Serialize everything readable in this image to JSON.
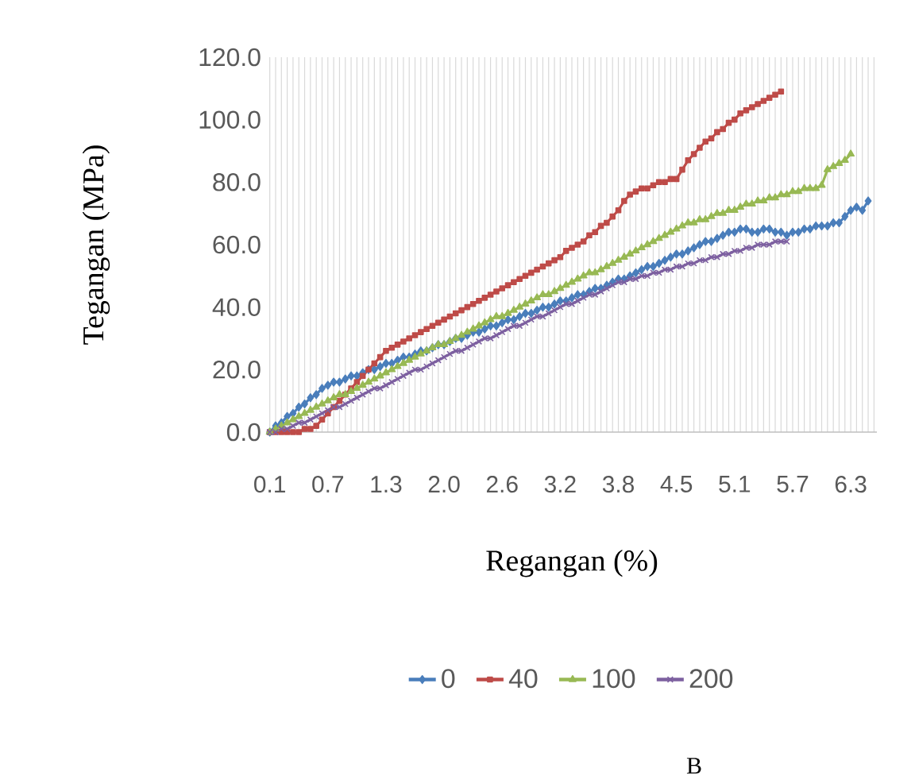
{
  "chart_data": {
    "type": "line",
    "xlabel": "Regangan (%)",
    "ylabel": "Tegangan (MPa)",
    "annotations": [
      "B"
    ],
    "categories": [
      "0.1",
      null,
      null,
      null,
      null,
      null,
      null,
      null,
      null,
      null,
      "0.7",
      null,
      null,
      null,
      null,
      null,
      null,
      null,
      null,
      null,
      "1.3",
      null,
      null,
      null,
      null,
      null,
      null,
      null,
      null,
      null,
      "2.0",
      null,
      null,
      null,
      null,
      null,
      null,
      null,
      null,
      null,
      "2.6",
      null,
      null,
      null,
      null,
      null,
      null,
      null,
      null,
      null,
      "3.2",
      null,
      null,
      null,
      null,
      null,
      null,
      null,
      null,
      null,
      "3.8",
      null,
      null,
      null,
      null,
      null,
      null,
      null,
      null,
      null,
      "4.5",
      null,
      null,
      null,
      null,
      null,
      null,
      null,
      null,
      null,
      "5.1",
      null,
      null,
      null,
      null,
      null,
      null,
      null,
      null,
      null,
      "5.7",
      null,
      null,
      null,
      null,
      null,
      null,
      null,
      null,
      null,
      "6.3",
      null,
      null,
      null,
      null
    ],
    "series": [
      {
        "name": "0",
        "color": "#4a7ebb",
        "marker": "diamond",
        "values": [
          0,
          2,
          3,
          5,
          6,
          8,
          9,
          11,
          12,
          14,
          15,
          16,
          16,
          17,
          18,
          18,
          19,
          20,
          20,
          21,
          22,
          22,
          23,
          24,
          24,
          25,
          26,
          26,
          27,
          28,
          28,
          29,
          30,
          30,
          31,
          32,
          32,
          33,
          34,
          34,
          35,
          36,
          36,
          37,
          38,
          38,
          39,
          40,
          40,
          41,
          42,
          42,
          43,
          44,
          44,
          45,
          46,
          46,
          47,
          48,
          49,
          49,
          50,
          51,
          52,
          53,
          53,
          54,
          55,
          56,
          57,
          57,
          58,
          59,
          60,
          61,
          61,
          62,
          63,
          64,
          64,
          65,
          65,
          64,
          64,
          65,
          65,
          64,
          64,
          63,
          64,
          64,
          65,
          65,
          66,
          66,
          66,
          67,
          67,
          69,
          71,
          72,
          71,
          74,
          null
        ]
      },
      {
        "name": "40",
        "color": "#be4b48",
        "marker": "square",
        "values": [
          0,
          0,
          0,
          0,
          0,
          0,
          1,
          1,
          2,
          4,
          6,
          8,
          10,
          12,
          14,
          16,
          18,
          20,
          22,
          24,
          26,
          27,
          28,
          29,
          30,
          31,
          32,
          33,
          34,
          35,
          36,
          37,
          38,
          39,
          40,
          41,
          42,
          43,
          44,
          45,
          46,
          47,
          48,
          49,
          50,
          51,
          52,
          53,
          54,
          55,
          56,
          58,
          59,
          60,
          61,
          63,
          64,
          66,
          67,
          69,
          71,
          74,
          76,
          77,
          78,
          78,
          79,
          80,
          80,
          81,
          81,
          84,
          87,
          89,
          91,
          93,
          94,
          96,
          97,
          99,
          100,
          102,
          103,
          104,
          105,
          106,
          107,
          108,
          109,
          null,
          null,
          null,
          null,
          null,
          null,
          null,
          null,
          null,
          null,
          null,
          null,
          null,
          null,
          null,
          null
        ]
      },
      {
        "name": "100",
        "color": "#98b954",
        "marker": "triangle",
        "values": [
          0,
          1,
          2,
          3,
          4,
          5,
          6,
          7,
          8,
          9,
          10,
          11,
          12,
          12,
          13,
          14,
          15,
          16,
          17,
          18,
          19,
          20,
          21,
          22,
          23,
          24,
          25,
          26,
          27,
          28,
          28,
          29,
          30,
          31,
          32,
          33,
          34,
          35,
          36,
          37,
          37,
          38,
          39,
          40,
          41,
          42,
          43,
          44,
          44,
          45,
          46,
          47,
          48,
          49,
          50,
          51,
          51,
          52,
          53,
          54,
          55,
          56,
          57,
          58,
          59,
          60,
          61,
          62,
          63,
          64,
          65,
          66,
          67,
          67,
          68,
          68,
          69,
          70,
          70,
          71,
          71,
          72,
          73,
          73,
          74,
          74,
          75,
          75,
          76,
          76,
          77,
          77,
          78,
          78,
          78,
          79,
          84,
          85,
          86,
          87,
          89,
          null,
          null,
          null,
          null
        ]
      },
      {
        "name": "200",
        "color": "#7d60a0",
        "marker": "cross",
        "values": [
          0,
          0,
          1,
          1,
          2,
          3,
          3,
          4,
          5,
          6,
          7,
          8,
          8,
          9,
          10,
          11,
          12,
          13,
          14,
          14,
          15,
          16,
          17,
          18,
          19,
          20,
          20,
          21,
          22,
          23,
          24,
          25,
          26,
          26,
          27,
          28,
          29,
          30,
          30,
          31,
          32,
          33,
          34,
          34,
          35,
          36,
          37,
          37,
          38,
          39,
          40,
          41,
          41,
          42,
          43,
          44,
          44,
          45,
          46,
          47,
          48,
          48,
          49,
          49,
          50,
          50,
          51,
          51,
          52,
          52,
          53,
          53,
          54,
          54,
          55,
          55,
          56,
          56,
          57,
          57,
          58,
          58,
          59,
          59,
          60,
          60,
          60,
          61,
          61,
          61,
          null,
          null,
          null,
          null,
          null,
          null,
          null,
          null,
          null,
          null,
          null,
          null,
          null,
          null,
          null
        ]
      }
    ],
    "ylim": [
      0,
      120
    ],
    "yticks": [
      {
        "value": 0,
        "label": "0.0"
      },
      {
        "value": 20,
        "label": "20.0"
      },
      {
        "value": 40,
        "label": "40.0"
      },
      {
        "value": 60,
        "label": "60.0"
      },
      {
        "value": 80,
        "label": "80.0"
      },
      {
        "value": 100,
        "label": "100.0"
      },
      {
        "value": 120,
        "label": "120.0"
      }
    ],
    "grid": "x",
    "legend": "bottom"
  }
}
